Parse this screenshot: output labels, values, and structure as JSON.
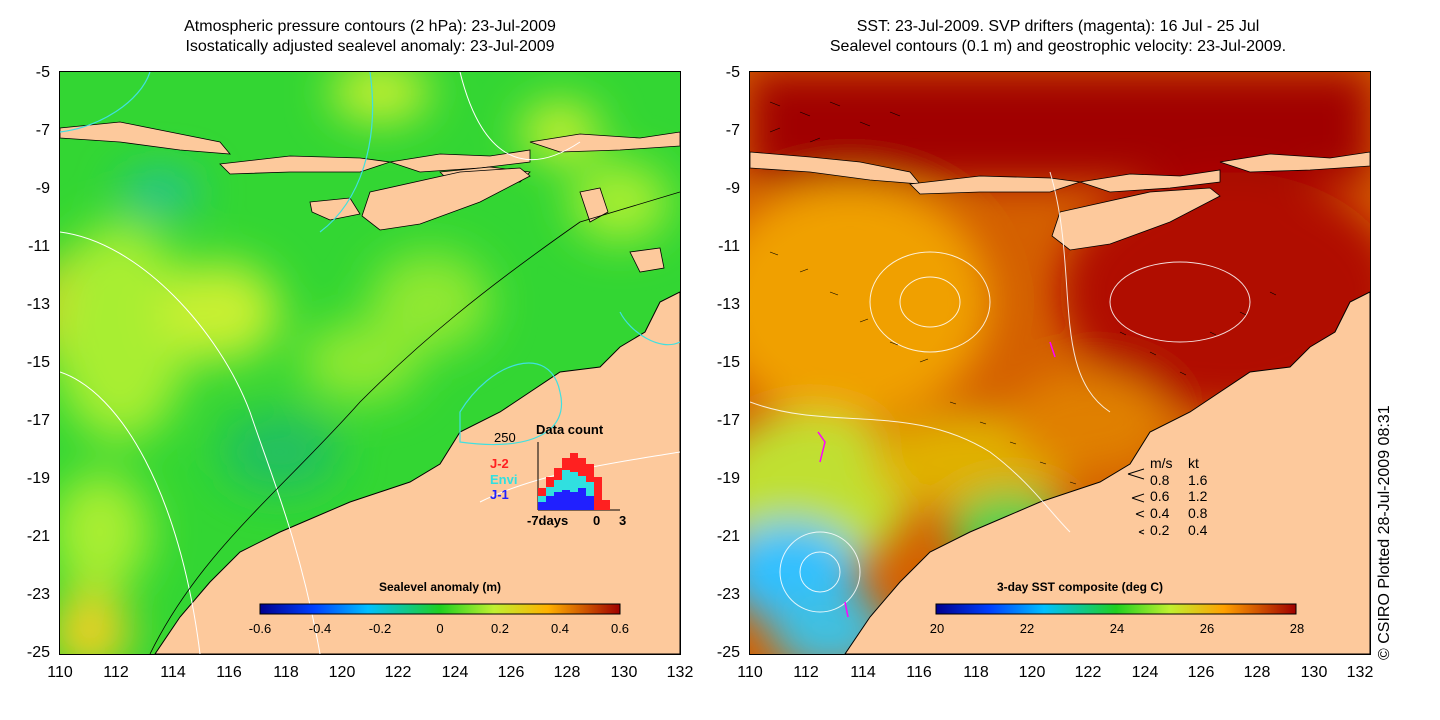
{
  "left_map": {
    "title_line1": "Atmospheric pressure contours (2 hPa): 23-Jul-2009",
    "title_line2": "Isostatically adjusted sealevel anomaly: 23-Jul-2009",
    "lon_range": [
      110,
      132
    ],
    "lat_range": [
      -25,
      -5
    ],
    "colorbar": {
      "label": "Sealevel anomaly (m)",
      "ticks": [
        "-0.6",
        "-0.4",
        "-0.2",
        "0",
        "0.2",
        "0.4",
        "0.6"
      ],
      "range": [
        -0.6,
        0.6
      ]
    },
    "inset": {
      "title": "Data count",
      "y_label": "250",
      "x_labels": [
        "-7days",
        "0",
        "3"
      ],
      "missions": [
        {
          "name": "J-2",
          "color": "#ff2020"
        },
        {
          "name": "Envi",
          "color": "#30e0e0"
        },
        {
          "name": "J-1",
          "color": "#2020ff"
        }
      ]
    }
  },
  "right_map": {
    "title_line1": "SST: 23-Jul-2009. SVP drifters (magenta): 16 Jul - 25 Jul",
    "title_line2": "Sealevel contours (0.1 m) and geostrophic velocity: 23-Jul-2009.",
    "lon_range": [
      110,
      132
    ],
    "lat_range": [
      -25,
      -5
    ],
    "colorbar": {
      "label": "3-day SST composite (deg C)",
      "ticks": [
        "20",
        "22",
        "24",
        "26",
        "28"
      ],
      "range": [
        20,
        28
      ]
    },
    "speed_legend": {
      "header_ms": "m/s",
      "header_kt": "kt",
      "rows": [
        {
          "ms": "0.8",
          "kt": "1.6"
        },
        {
          "ms": "0.6",
          "kt": "1.2"
        },
        {
          "ms": "0.4",
          "kt": "0.8"
        },
        {
          "ms": "0.2",
          "kt": "0.4"
        }
      ]
    }
  },
  "y_ticks": [
    "-5",
    "-7",
    "-9",
    "-11",
    "-13",
    "-15",
    "-17",
    "-19",
    "-21",
    "-23",
    "-25"
  ],
  "x_ticks": [
    "110",
    "112",
    "114",
    "116",
    "118",
    "120",
    "122",
    "124",
    "126",
    "128",
    "130",
    "132"
  ],
  "credit": "© CSIRO Plotted 28-Jul-2009 08:31",
  "colors": {
    "land": "#fdc99c",
    "sla_green": "#33d633",
    "sst_darkred": "#a00000"
  }
}
